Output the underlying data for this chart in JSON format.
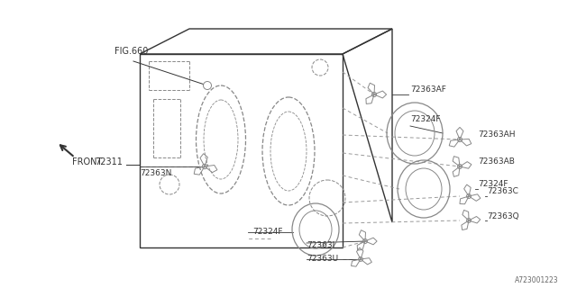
{
  "bg_color": "#ffffff",
  "line_color": "#333333",
  "gray": "#888888",
  "watermark": "A723001223",
  "labels": {
    "fig660": "FIG.660",
    "front": "FRONT",
    "part_main": "72311",
    "l_72363AF": "72363AF",
    "l_72324F_top": "72324F",
    "l_72363AH": "72363AH",
    "l_72363AB": "72363AB",
    "l_72324F_mid": "72324F",
    "l_72363C": "72363C",
    "l_72363Q": "72363Q",
    "l_72363N": "72363N",
    "l_72324F_bot": "72324F",
    "l_72363I": "72363I",
    "l_72363U": "72363U"
  }
}
